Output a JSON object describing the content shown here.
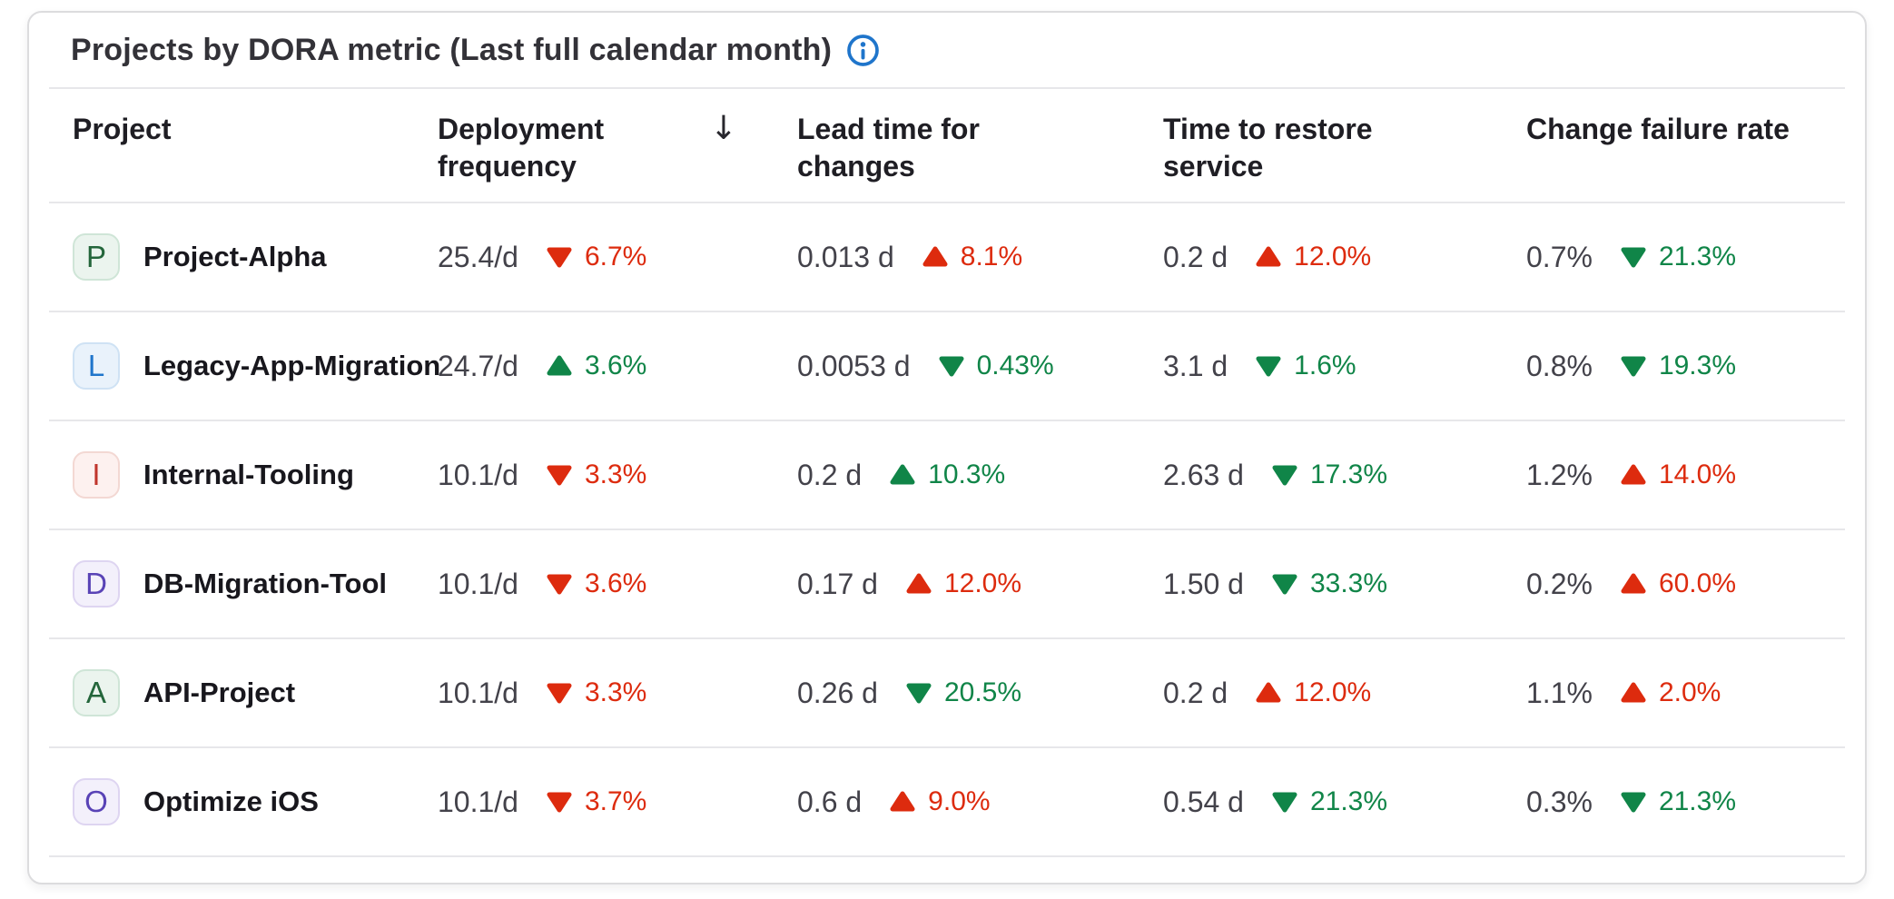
{
  "card": {
    "title": "Projects by DORA metric (Last full calendar month)"
  },
  "icons": {
    "sort_descending": "↓",
    "info": "circled-i"
  },
  "colors": {
    "accent_blue": "#1f75cb",
    "negative_red": "#dd2b0e",
    "positive_green": "#108548",
    "divider": "#e7e7ea",
    "card_border": "#dcdcde"
  },
  "table": {
    "columns": [
      {
        "label": "Project",
        "sortable": true,
        "sorted": false
      },
      {
        "label": "Deployment frequency",
        "sortable": true,
        "sorted": true,
        "sort_direction": "descending"
      },
      {
        "label": "Lead time for changes",
        "sortable": true,
        "sorted": false
      },
      {
        "label": "Time to restore service",
        "sortable": true,
        "sorted": false
      },
      {
        "label": "Change failure rate",
        "sortable": true,
        "sorted": false
      }
    ],
    "rows": [
      {
        "project": {
          "initial": "P",
          "name": "Project-Alpha",
          "avatar_bg": "#ebf4ee",
          "avatar_color": "#24663b",
          "avatar_border": "#cfe5d7"
        },
        "metrics": [
          {
            "value": "25.4/d",
            "trend": "down",
            "change": "6.7%",
            "sentiment": "negative"
          },
          {
            "value": "0.013 d",
            "trend": "up",
            "change": "8.1%",
            "sentiment": "negative"
          },
          {
            "value": "0.2 d",
            "trend": "up",
            "change": "12.0%",
            "sentiment": "negative"
          },
          {
            "value": "0.7%",
            "trend": "down",
            "change": "21.3%",
            "sentiment": "positive"
          }
        ]
      },
      {
        "project": {
          "initial": "L",
          "name": "Legacy-App-Migration",
          "avatar_bg": "#e9f2fb",
          "avatar_color": "#1f75cb",
          "avatar_border": "#cfe2f4"
        },
        "metrics": [
          {
            "value": "24.7/d",
            "trend": "up",
            "change": "3.6%",
            "sentiment": "positive"
          },
          {
            "value": "0.0053 d",
            "trend": "down",
            "change": "0.43%",
            "sentiment": "positive"
          },
          {
            "value": "3.1 d",
            "trend": "down",
            "change": "1.6%",
            "sentiment": "positive"
          },
          {
            "value": "0.8%",
            "trend": "down",
            "change": "19.3%",
            "sentiment": "positive"
          }
        ]
      },
      {
        "project": {
          "initial": "I",
          "name": "Internal-Tooling",
          "avatar_bg": "#fdf1ef",
          "avatar_color": "#c0352c",
          "avatar_border": "#f3d8d3"
        },
        "metrics": [
          {
            "value": "10.1/d",
            "trend": "down",
            "change": "3.3%",
            "sentiment": "negative"
          },
          {
            "value": "0.2 d",
            "trend": "up",
            "change": "10.3%",
            "sentiment": "positive"
          },
          {
            "value": "2.63 d",
            "trend": "down",
            "change": "17.3%",
            "sentiment": "positive"
          },
          {
            "value": "1.2%",
            "trend": "up",
            "change": "14.0%",
            "sentiment": "negative"
          }
        ]
      },
      {
        "project": {
          "initial": "D",
          "name": "DB-Migration-Tool",
          "avatar_bg": "#f3f0fb",
          "avatar_color": "#5943b6",
          "avatar_border": "#ded5f1"
        },
        "metrics": [
          {
            "value": "10.1/d",
            "trend": "down",
            "change": "3.6%",
            "sentiment": "negative"
          },
          {
            "value": "0.17 d",
            "trend": "up",
            "change": "12.0%",
            "sentiment": "negative"
          },
          {
            "value": "1.50 d",
            "trend": "down",
            "change": "33.3%",
            "sentiment": "positive"
          },
          {
            "value": "0.2%",
            "trend": "up",
            "change": "60.0%",
            "sentiment": "negative"
          }
        ]
      },
      {
        "project": {
          "initial": "A",
          "name": "API-Project",
          "avatar_bg": "#ebf4ee",
          "avatar_color": "#24663b",
          "avatar_border": "#cfe5d7"
        },
        "metrics": [
          {
            "value": "10.1/d",
            "trend": "down",
            "change": "3.3%",
            "sentiment": "negative"
          },
          {
            "value": "0.26 d",
            "trend": "down",
            "change": "20.5%",
            "sentiment": "positive"
          },
          {
            "value": "0.2 d",
            "trend": "up",
            "change": "12.0%",
            "sentiment": "negative"
          },
          {
            "value": "1.1%",
            "trend": "up",
            "change": "2.0%",
            "sentiment": "negative"
          }
        ]
      },
      {
        "project": {
          "initial": "O",
          "name": "Optimize iOS",
          "avatar_bg": "#f3f0fb",
          "avatar_color": "#5943b6",
          "avatar_border": "#ded5f1"
        },
        "metrics": [
          {
            "value": "10.1/d",
            "trend": "down",
            "change": "3.7%",
            "sentiment": "negative"
          },
          {
            "value": "0.6 d",
            "trend": "up",
            "change": "9.0%",
            "sentiment": "negative"
          },
          {
            "value": "0.54 d",
            "trend": "down",
            "change": "21.3%",
            "sentiment": "positive"
          },
          {
            "value": "0.3%",
            "trend": "down",
            "change": "21.3%",
            "sentiment": "positive"
          }
        ]
      }
    ]
  }
}
